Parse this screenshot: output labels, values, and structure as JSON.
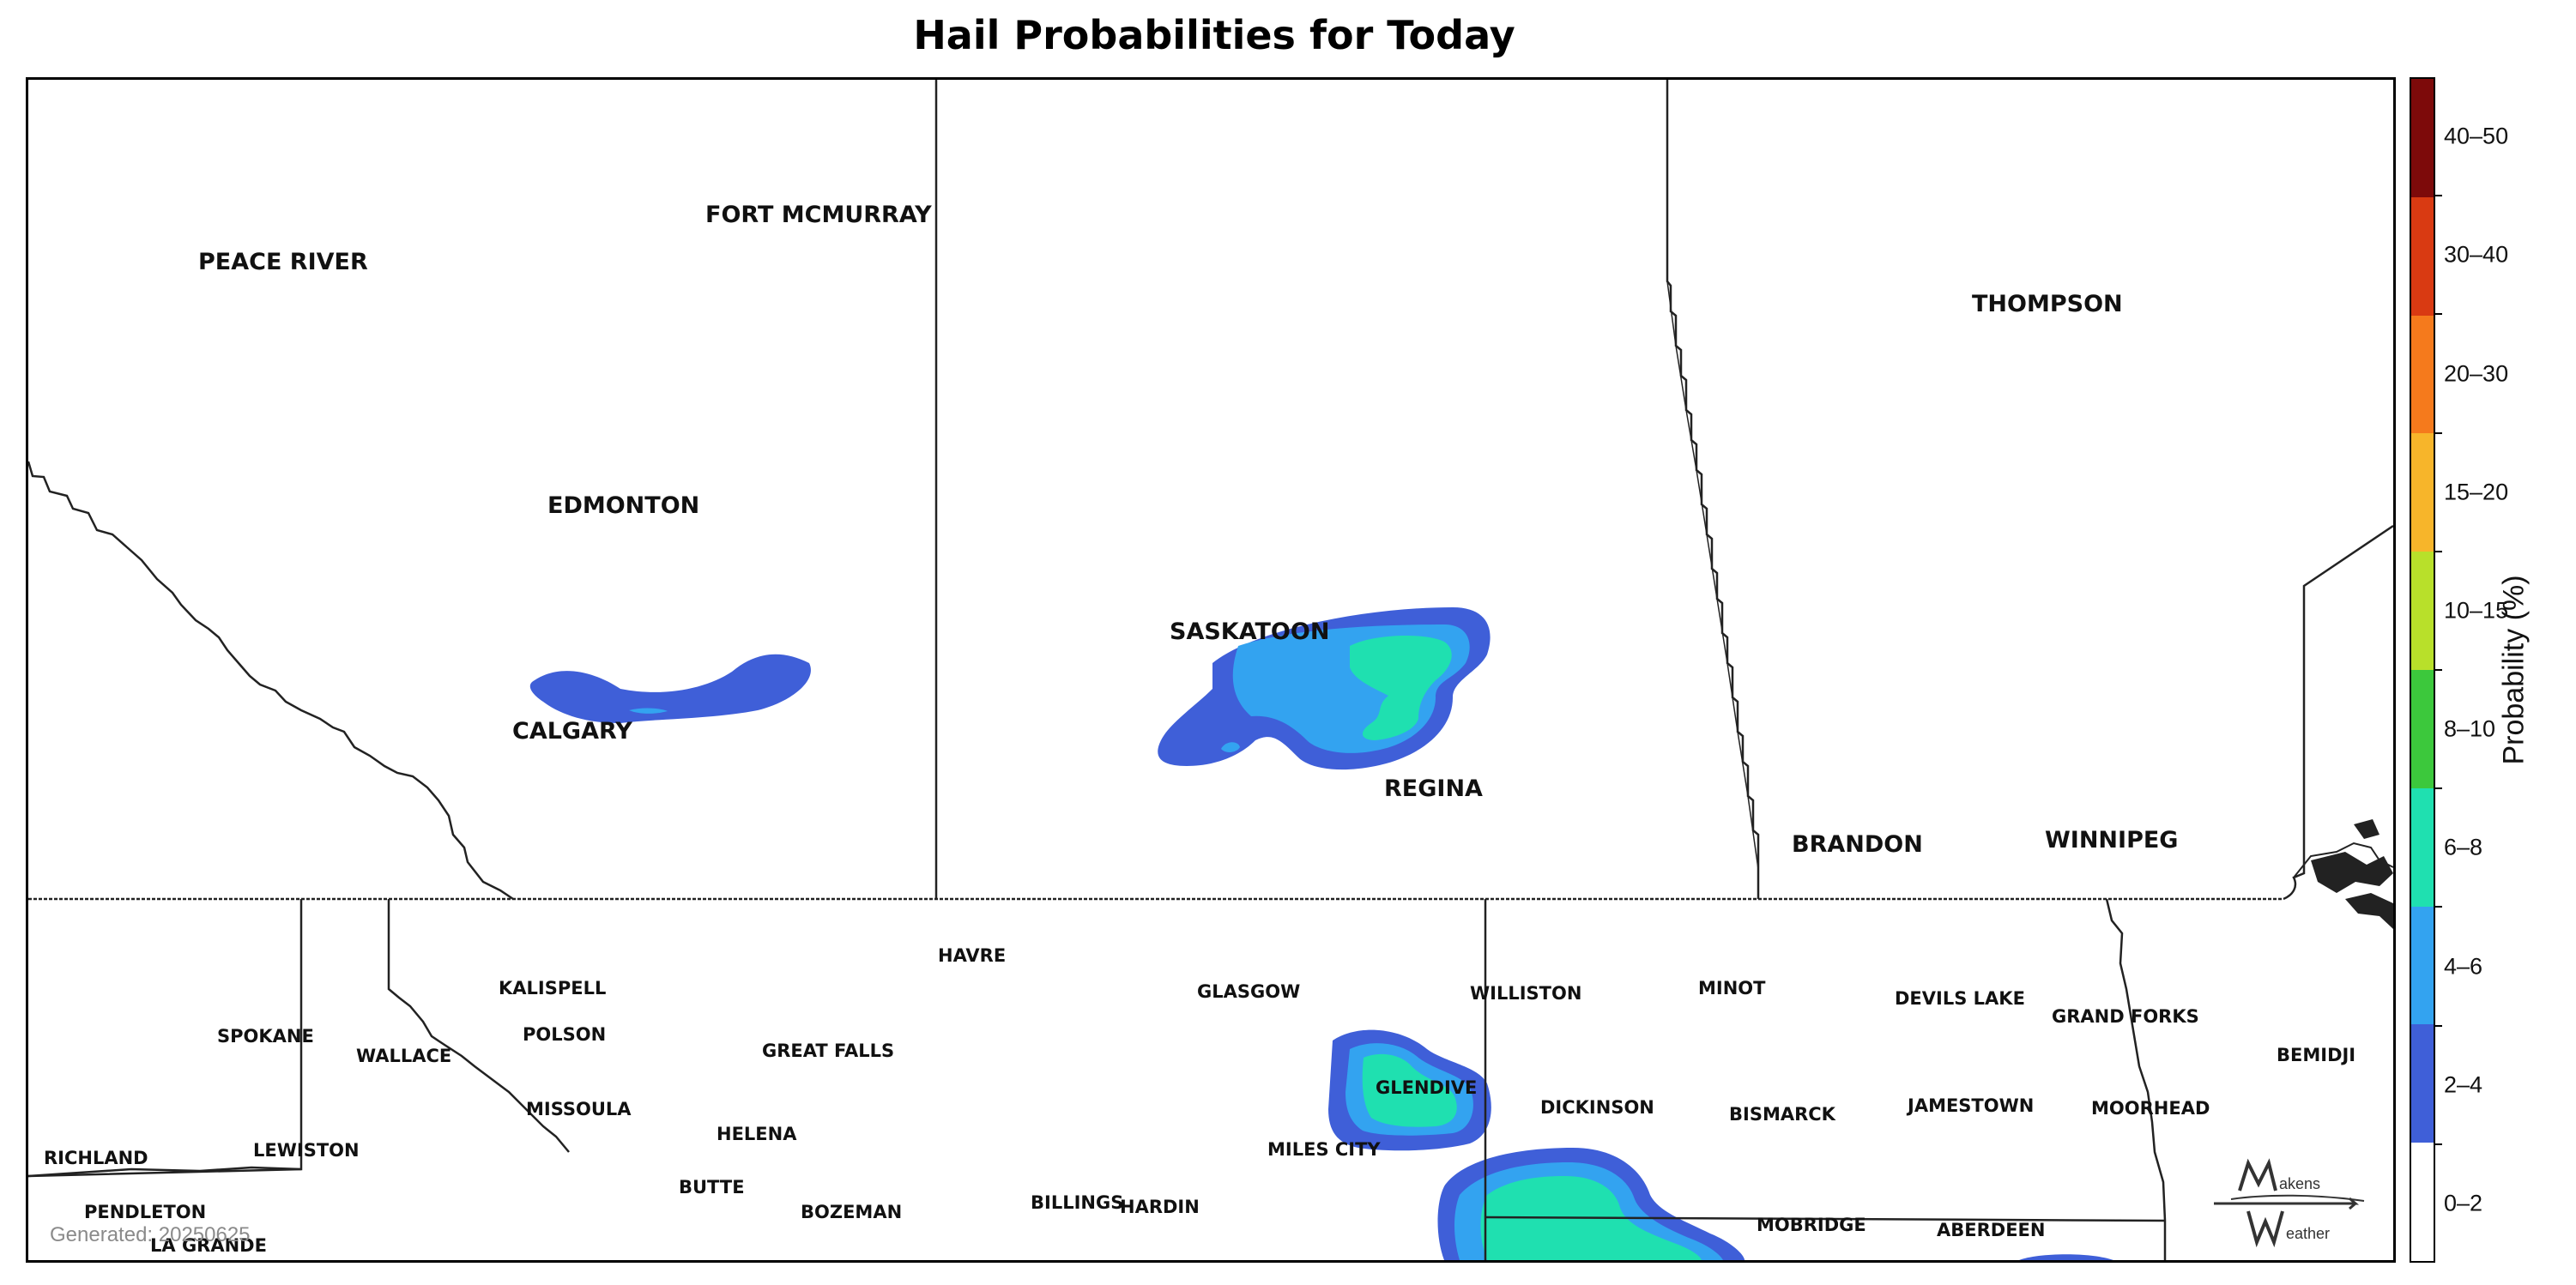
{
  "title": "Hail Probabilities for Today",
  "generated_label": "Generated: 20250625",
  "legend": {
    "title": "Probability (%)",
    "bins": [
      {
        "label": "0–2",
        "color": "#ffffff"
      },
      {
        "label": "2–4",
        "color": "#3f5fd8"
      },
      {
        "label": "4–6",
        "color": "#33a3f0"
      },
      {
        "label": "6–8",
        "color": "#1fe0b0"
      },
      {
        "label": "8–10",
        "color": "#3cc83c"
      },
      {
        "label": "10–15",
        "color": "#b8e02a"
      },
      {
        "label": "15–20",
        "color": "#f7b52a"
      },
      {
        "label": "20–30",
        "color": "#f57a1c"
      },
      {
        "label": "30–40",
        "color": "#d93a12"
      },
      {
        "label": "40–50",
        "color": "#7d0a0a"
      }
    ]
  },
  "cities": {
    "peace_river": "PEACE RIVER",
    "fort_mcmurray": "FORT MCMURRAY",
    "edmonton": "EDMONTON",
    "calgary": "CALGARY",
    "saskatoon": "SASKATOON",
    "regina": "REGINA",
    "thompson": "THOMPSON",
    "brandon": "BRANDON",
    "winnipeg": "WINNIPEG",
    "havre": "HAVRE",
    "kalispell": "KALISPELL",
    "spokane": "SPOKANE",
    "polson": "POLSON",
    "wallace": "WALLACE",
    "great_falls": "GREAT FALLS",
    "glasgow": "GLASGOW",
    "williston": "WILLISTON",
    "minot": "MINOT",
    "devils_lake": "DEVILS LAKE",
    "grand_forks": "GRAND FORKS",
    "bemidji": "BEMIDJI",
    "missoula": "MISSOULA",
    "glendive": "GLENDIVE",
    "dickinson": "DICKINSON",
    "bismarck": "BISMARCK",
    "jamestown": "JAMESTOWN",
    "moorhead": "MOORHEAD",
    "helena": "HELENA",
    "lewiston": "LEWISTON",
    "richland": "RICHLAND",
    "miles_city": "MILES CITY",
    "butte": "BUTTE",
    "pendleton": "PENDLETON",
    "bozeman": "BOZEMAN",
    "billings": "BILLINGS",
    "hardin": "HARDIN",
    "mobridge": "MOBRIDGE",
    "aberdeen": "ABERDEEN",
    "la_grande": "LA GRANDE"
  },
  "logo": {
    "line1": "akens",
    "line2": "eather"
  }
}
